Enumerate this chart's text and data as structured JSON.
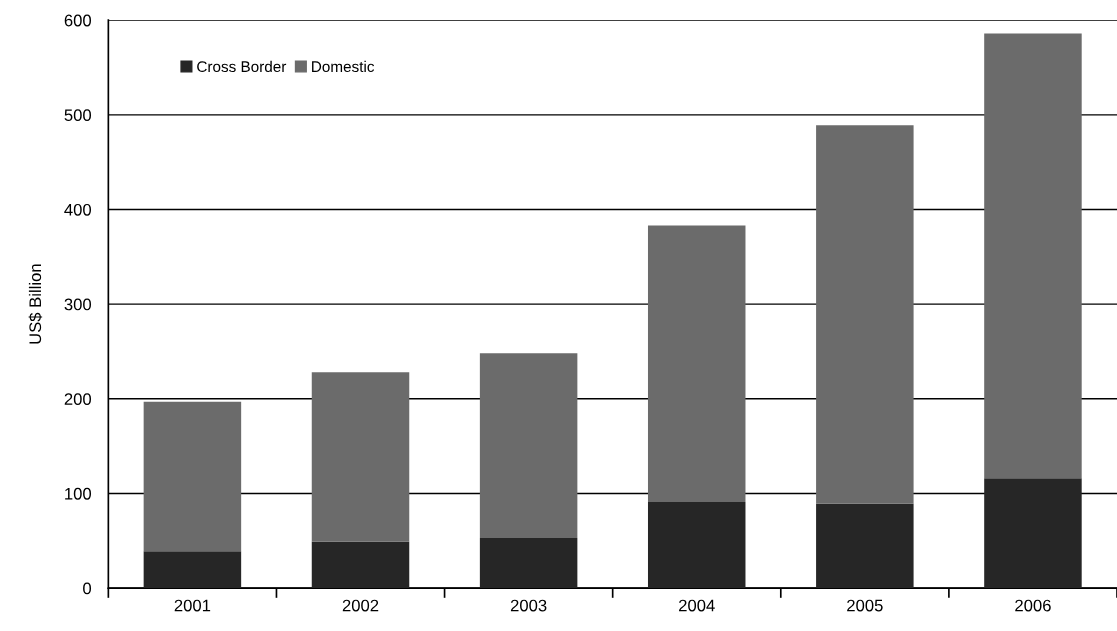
{
  "chart_data": {
    "type": "bar",
    "stacked": true,
    "ylabel": "US$ Billion",
    "categories": [
      "2001",
      "2002",
      "2003",
      "2004",
      "2005",
      "2006"
    ],
    "series": [
      {
        "name": "Cross Border",
        "color": "#262626",
        "values": [
          39,
          49,
          53,
          91,
          89,
          116
        ]
      },
      {
        "name": "Domestic",
        "color": "#6b6b6b",
        "values": [
          158,
          179,
          195,
          292,
          400,
          470
        ]
      }
    ],
    "ylim": [
      0,
      600
    ],
    "yticks": [
      0,
      100,
      200,
      300,
      400,
      500,
      600
    ],
    "grid": "y",
    "legend": "top left"
  }
}
